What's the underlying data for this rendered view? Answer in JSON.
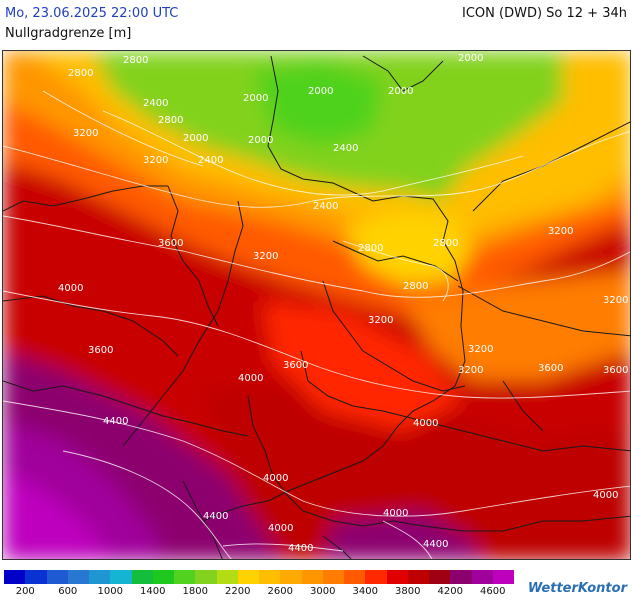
{
  "header": {
    "datetime": "Mo, 23.06.2025 22:00 UTC",
    "model": "ICON (DWD) So 12 + 34h",
    "parameter": "Nullgradgrenze [m]"
  },
  "legend": {
    "colors": [
      "#0000c8",
      "#0a32d2",
      "#1e5ad2",
      "#2878d2",
      "#1e96d2",
      "#14b4d2",
      "#14be3c",
      "#1ec81e",
      "#50d21e",
      "#82d21e",
      "#b4dc14",
      "#ffd200",
      "#ffbe00",
      "#ffaa00",
      "#ff9600",
      "#ff7d00",
      "#ff5a00",
      "#ff2800",
      "#e10000",
      "#be0000",
      "#a00014",
      "#8c006e",
      "#a0009b",
      "#be00be"
    ],
    "tick_labels": [
      "200",
      "600",
      "1000",
      "1400",
      "1800",
      "2200",
      "2600",
      "3000",
      "3400",
      "3800",
      "4200",
      "4600"
    ]
  },
  "contour_labels": [
    "2800",
    "2800",
    "2000",
    "2000",
    "2000",
    "2000",
    "2400",
    "2800",
    "2000",
    "2000",
    "3200",
    "2400",
    "3200",
    "2400",
    "3600",
    "3200",
    "2400",
    "2800",
    "2800",
    "2800",
    "3200",
    "4000",
    "3200",
    "3200",
    "3200",
    "3600",
    "4000",
    "3200",
    "3600",
    "3600",
    "4400",
    "3600",
    "4000",
    "4000",
    "4000",
    "4400",
    "4000",
    "4400",
    "4400",
    "4000"
  ],
  "branding": "WetterKontor"
}
